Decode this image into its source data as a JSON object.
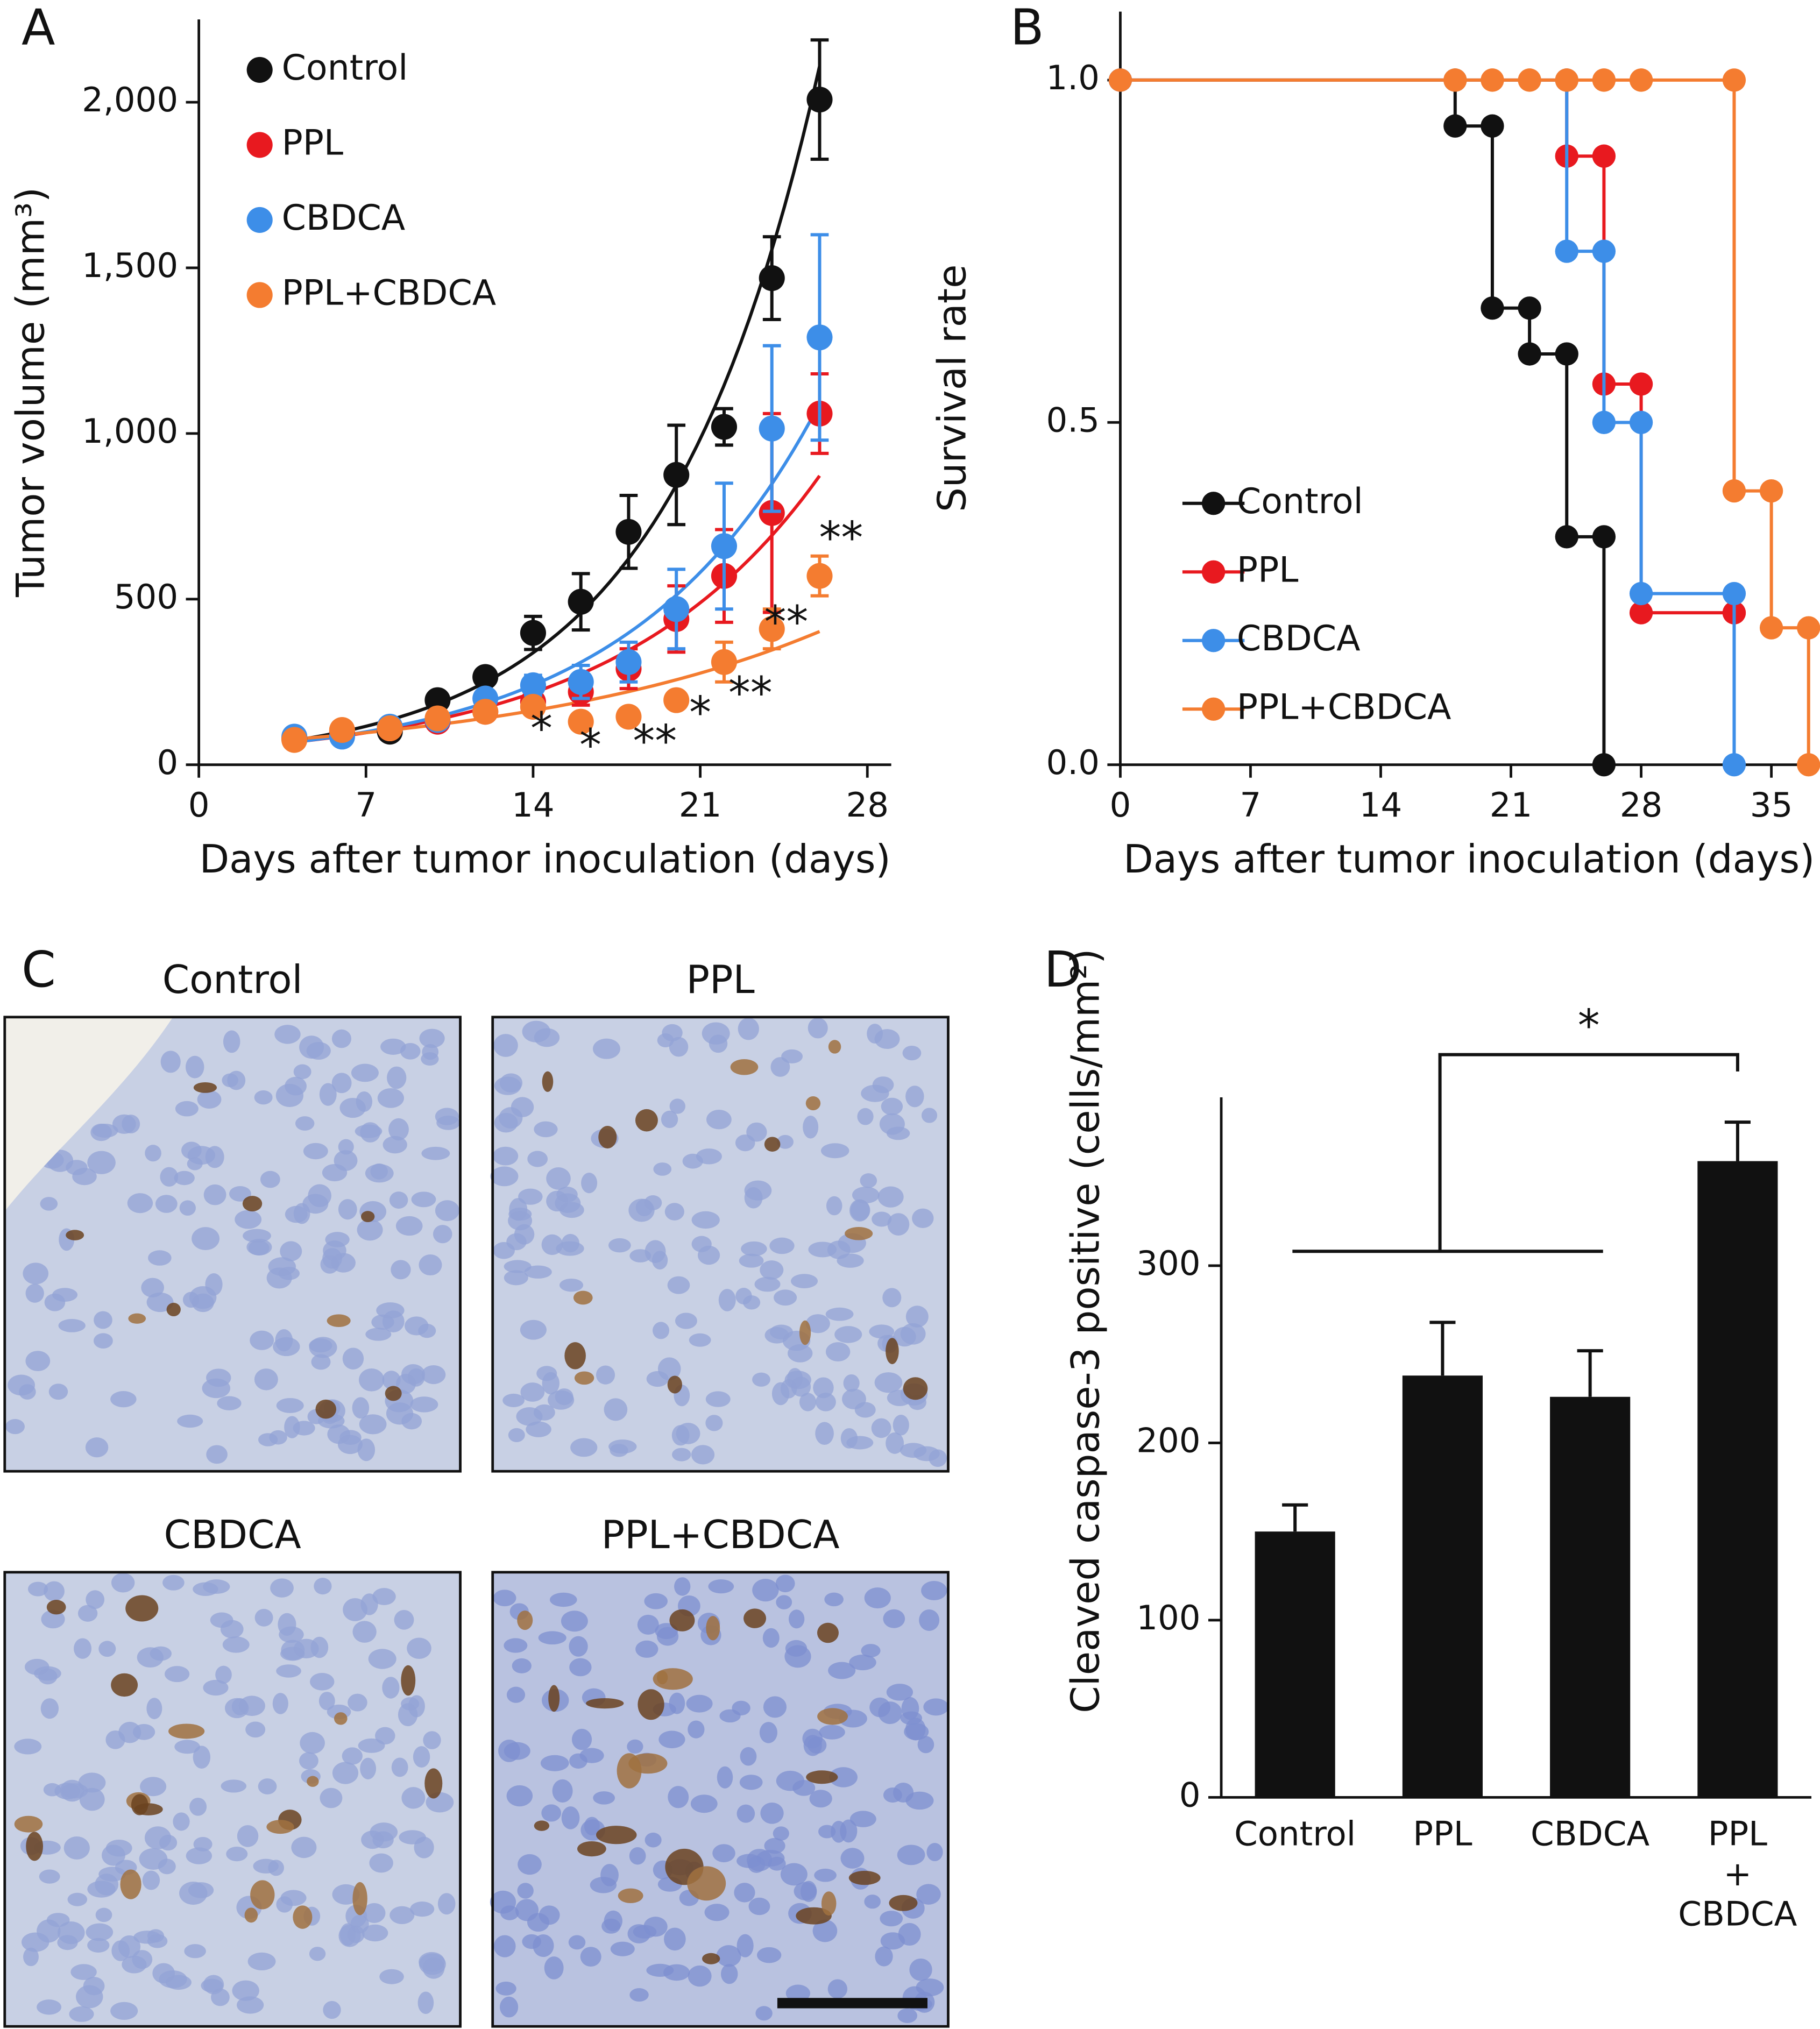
{
  "chart_data": [
    {
      "type": "line",
      "panel": "A",
      "x_label": "Days after tumor inoculation (days)",
      "y_label": "Tumor volume (mm³)",
      "x": [
        4,
        6,
        8,
        10,
        12,
        14,
        16,
        18,
        20,
        22,
        24,
        26
      ],
      "xlim": [
        0,
        29
      ],
      "xticks": [
        0,
        7,
        14,
        21,
        28
      ],
      "ylim": [
        0,
        2250
      ],
      "yticks": [
        0,
        500,
        {
          "value": 1000,
          "label": "1,000"
        },
        {
          "value": 1500,
          "label": "1,500"
        },
        {
          "value": 2000,
          "label": "2,000"
        }
      ],
      "legend": "upper left",
      "series": [
        {
          "name": "Control",
          "color": "#111111",
          "values": [
            78,
            95,
            100,
            195,
            265,
            398,
            492,
            703,
            875,
            1020,
            1469,
            2008
          ],
          "errors": [
            10,
            10,
            12,
            20,
            22,
            50,
            85,
            110,
            150,
            55,
            125,
            180
          ]
        },
        {
          "name": "PPL",
          "color": "#e8191f",
          "values": [
            80,
            100,
            110,
            130,
            160,
            190,
            220,
            290,
            440,
            570,
            760,
            1060
          ],
          "errors": [
            8,
            8,
            10,
            12,
            20,
            30,
            40,
            60,
            100,
            140,
            300,
            120
          ]
        },
        {
          "name": "CBDCA",
          "color": "#3d8ee8",
          "values": [
            85,
            85,
            115,
            135,
            200,
            240,
            250,
            310,
            470,
            660,
            1015,
            1290
          ],
          "errors": [
            8,
            8,
            10,
            15,
            20,
            30,
            50,
            60,
            120,
            190,
            250,
            310
          ]
        },
        {
          "name": "PPL+CBDCA",
          "color": "#f47c30",
          "values": [
            75,
            105,
            110,
            140,
            160,
            175,
            130,
            145,
            195,
            310,
            410,
            570
          ],
          "errors": [
            8,
            10,
            10,
            12,
            15,
            15,
            15,
            15,
            20,
            60,
            60,
            60
          ]
        }
      ],
      "annotations": [
        {
          "text": "*",
          "x": 14.35,
          "y": 100
        },
        {
          "text": "*",
          "x": 16.4,
          "y": 50
        },
        {
          "text": "**",
          "x": 19.1,
          "y": 62
        },
        {
          "text": "*",
          "x": 21,
          "y": 148
        },
        {
          "text": "**",
          "x": 23.1,
          "y": 207
        },
        {
          "text": "**",
          "x": 24.6,
          "y": 422
        },
        {
          "text": "**",
          "x": 26.9,
          "y": 676
        }
      ]
    },
    {
      "type": "step",
      "panel": "B",
      "x_label": "Days after tumor inoculation (days)",
      "y_label": "Survival rate",
      "xlim": [
        0,
        37.5
      ],
      "xticks": [
        0,
        7,
        14,
        21,
        28,
        35
      ],
      "ylim": [
        0,
        1.1
      ],
      "yticks": [
        {
          "value": 0,
          "label": "0.0"
        },
        {
          "value": 0.5,
          "label": "0.5"
        },
        {
          "value": 1,
          "label": "1.0"
        }
      ],
      "legend": "lower left",
      "series": [
        {
          "name": "Control",
          "color": "#111111",
          "x": [
            0,
            18,
            20,
            22,
            24,
            26
          ],
          "values": [
            1,
            0.933,
            0.667,
            0.6,
            0.333,
            0
          ]
        },
        {
          "name": "PPL",
          "color": "#e8191f",
          "x": [
            0,
            24,
            26,
            28,
            33
          ],
          "values": [
            1,
            0.889,
            0.556,
            0.222,
            0.222
          ]
        },
        {
          "name": "CBDCA",
          "color": "#3d8ee8",
          "x": [
            0,
            24,
            26,
            28,
            33
          ],
          "values": [
            1,
            0.75,
            0.5,
            0.25,
            0
          ]
        },
        {
          "name": "PPL+CBDCA",
          "color": "#f47c30",
          "x": [
            0,
            18,
            20,
            22,
            24,
            26,
            28,
            33,
            35,
            37
          ],
          "values": [
            1,
            1,
            1,
            1,
            1,
            1,
            1,
            0.4,
            0.2,
            0
          ]
        }
      ]
    },
    {
      "type": "bar",
      "panel": "D",
      "y_label": "Cleaved caspase-3 positive (cells/mm²)",
      "categories": [
        "Control",
        "PPL",
        "CBDCA",
        "PPL\n+\nCBDCA"
      ],
      "values": [
        150,
        238,
        226,
        359
      ],
      "errors": [
        15,
        30,
        26,
        22
      ],
      "color": "#111111",
      "ylim": [
        0,
        395
      ],
      "yticks": [
        0,
        100,
        200,
        300
      ],
      "annotations": [
        {
          "text": "*"
        }
      ]
    }
  ],
  "micrographs": {
    "panel": "C",
    "titles": [
      "Control",
      "PPL",
      "CBDCA",
      "PPL+CBDCA"
    ]
  }
}
